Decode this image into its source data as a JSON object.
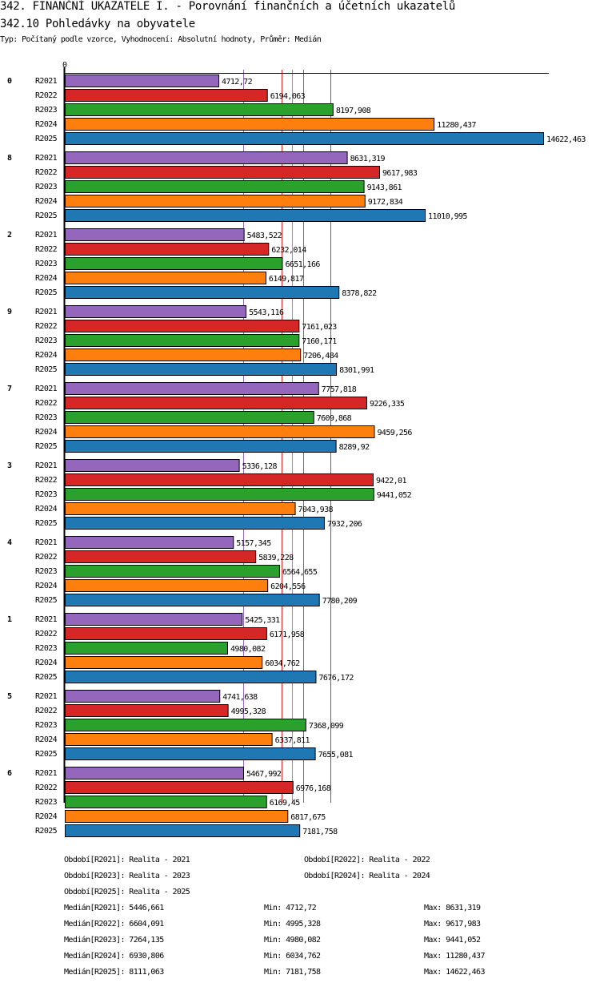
{
  "header": {
    "title": "342. FINANČNÍ UKAZATELE I. - Porovnání finančních a účetních ukazatelů",
    "subtitle": "342.10 Pohledávky na obyvatele",
    "info": "Typ: Počítaný podle vzorce, Vyhodnocení: Absolutní hodnoty, Průměr: Medián"
  },
  "chart_data": {
    "type": "bar",
    "orientation": "horizontal",
    "title": "342.10 Pohledávky na obyvatele",
    "x_tick_labels": [
      "0"
    ],
    "xlim": [
      0,
      14622.463
    ],
    "categories": [
      "0",
      "8",
      "2",
      "9",
      "7",
      "3",
      "4",
      "1",
      "5",
      "6"
    ],
    "series": [
      {
        "name": "R2021",
        "color": "#9467bd",
        "values": [
          4712.72,
          8631.319,
          5483.522,
          5543.116,
          7757.818,
          5336.128,
          5157.345,
          5425.331,
          4741.638,
          5467.992
        ],
        "labels": [
          "4712,72",
          "8631,319",
          "5483,522",
          "5543,116",
          "7757,818",
          "5336,128",
          "5157,345",
          "5425,331",
          "4741,638",
          "5467,992"
        ],
        "median": 5446.661
      },
      {
        "name": "R2022",
        "color": "#d62728",
        "values": [
          6194.063,
          9617.983,
          6232.014,
          7161.023,
          9226.335,
          9422.01,
          5839.228,
          6171.958,
          4995.328,
          6976.168
        ],
        "labels": [
          "6194,063",
          "9617,983",
          "6232,014",
          "7161,023",
          "9226,335",
          "9422,01",
          "5839,228",
          "6171,958",
          "4995,328",
          "6976,168"
        ],
        "median": 6604.091
      },
      {
        "name": "R2023",
        "color": "#2ca02c",
        "values": [
          8197.908,
          9143.861,
          6651.166,
          7160.171,
          7609.868,
          9441.052,
          6564.655,
          4980.082,
          7368.099,
          6169.45
        ],
        "labels": [
          "8197,908",
          "9143,861",
          "6651,166",
          "7160,171",
          "7609,868",
          "9441,052",
          "6564,655",
          "4980,082",
          "7368,099",
          "6169,45"
        ],
        "median": 7264.135
      },
      {
        "name": "R2024",
        "color": "#ff7f0e",
        "values": [
          11280.437,
          9172.834,
          6149.817,
          7206.484,
          9459.256,
          7043.938,
          6204.556,
          6034.762,
          6337.811,
          6817.675
        ],
        "labels": [
          "11280,437",
          "9172,834",
          "6149,817",
          "7206,484",
          "9459,256",
          "7043,938",
          "6204,556",
          "6034,762",
          "6337,811",
          "6817,675"
        ],
        "median": 6930.806
      },
      {
        "name": "R2025",
        "color": "#1f77b4",
        "values": [
          14622.463,
          11010.995,
          8378.822,
          8301.991,
          8289.92,
          7932.206,
          7780.209,
          7676.172,
          7655.081,
          7181.758
        ],
        "labels": [
          "14622,463",
          "11010,995",
          "8378,822",
          "8301,991",
          "8289,92",
          "7932,206",
          "7780,209",
          "7676,172",
          "7655,081",
          "7181,758"
        ],
        "median": 8111.063
      }
    ]
  },
  "legend": {
    "periods": [
      "Období[R2021]: Realita - 2021",
      "Období[R2022]: Realita - 2022",
      "Období[R2023]: Realita - 2023",
      "Období[R2024]: Realita - 2024",
      "Období[R2025]: Realita - 2025"
    ],
    "stats": [
      {
        "median": "Medián[R2021]: 5446,661",
        "min": "Min: 4712,72",
        "max": "Max: 8631,319"
      },
      {
        "median": "Medián[R2022]: 6604,091",
        "min": "Min: 4995,328",
        "max": "Max: 9617,983"
      },
      {
        "median": "Medián[R2023]: 7264,135",
        "min": "Min: 4980,082",
        "max": "Max: 9441,052"
      },
      {
        "median": "Medián[R2024]: 6930,806",
        "min": "Min: 6034,762",
        "max": "Max: 11280,437"
      },
      {
        "median": "Medián[R2025]: 8111,063",
        "min": "Min: 7181,758",
        "max": "Max: 14622,463"
      }
    ]
  }
}
